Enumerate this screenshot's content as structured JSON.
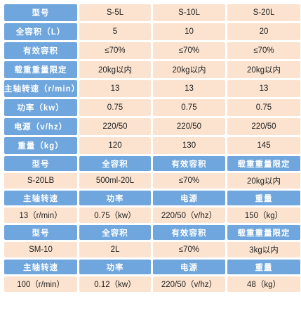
{
  "spec_table": {
    "header": {
      "label": "型号",
      "models": [
        "S-5L",
        "S-10L",
        "S-20L"
      ]
    },
    "rows": [
      {
        "label": "全容积（L）",
        "values": [
          "5",
          "10",
          "20"
        ]
      },
      {
        "label": "有效容积",
        "values": [
          "≤70%",
          "≤70%",
          "≤70%"
        ]
      },
      {
        "label": "载重重量限定",
        "values": [
          "20kg以内",
          "20kg以内",
          "20kg以内"
        ]
      },
      {
        "label": "主轴转速（r/min）",
        "values": [
          "13",
          "13",
          "13"
        ]
      },
      {
        "label": "功率（kw）",
        "values": [
          "0.75",
          "0.75",
          "0.75"
        ]
      },
      {
        "label": "电源（v/hz）",
        "values": [
          "220/50",
          "220/50",
          "220/50"
        ]
      },
      {
        "label": "重量（kg）",
        "values": [
          "120",
          "130",
          "145"
        ]
      }
    ]
  },
  "model_blocks": [
    {
      "header1": [
        "型号",
        "全容积",
        "有效容积",
        "载重重量限定"
      ],
      "values1": [
        "S-20LB",
        "500ml-20L",
        "≤70%",
        "20kg以内"
      ],
      "header2": [
        "主轴转速",
        "功率",
        "电源",
        "重量"
      ],
      "values2": [
        "13（r/min）",
        "0.75（kw）",
        "220/50（v/hz）",
        "150（kg）"
      ]
    },
    {
      "header1": [
        "型号",
        "全容积",
        "有效容积",
        "载重重量限定"
      ],
      "values1": [
        "SM-10",
        "2L",
        "≤70%",
        "3kg以内"
      ],
      "header2": [
        "主轴转速",
        "功率",
        "电源",
        "重量"
      ],
      "values2": [
        "100（r/min）",
        "0.12（kw）",
        "220/50（v/hz）",
        "48（kg）"
      ]
    }
  ],
  "colors": {
    "header_blue": "#6fa6dd",
    "cell_peach": "#fbe3cf",
    "header_text": "#ffffff",
    "cell_text": "#222222"
  }
}
